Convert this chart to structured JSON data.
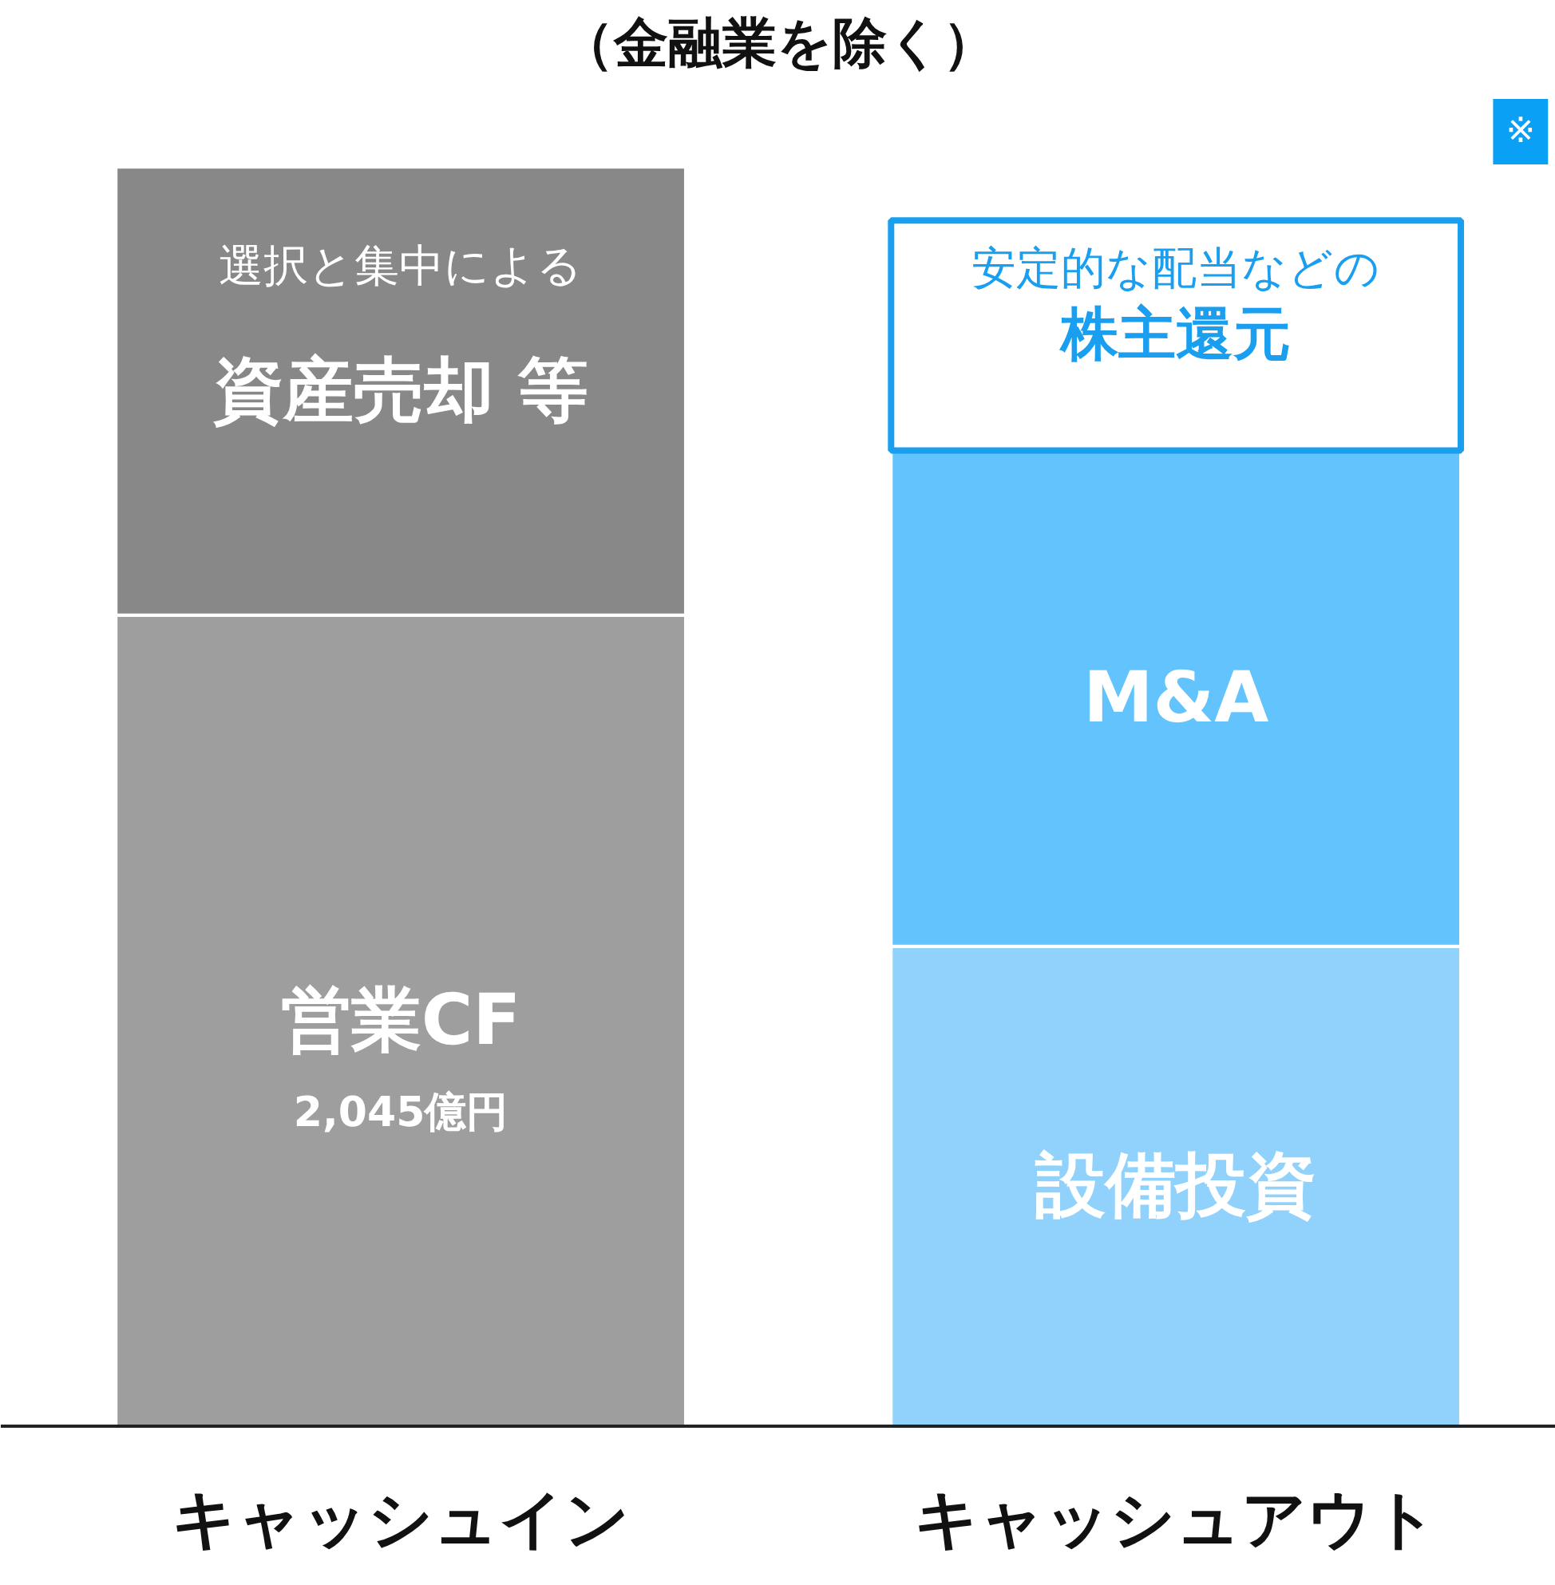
{
  "chart_data": {
    "type": "bar",
    "title": "（金融業を除く）",
    "categories": [
      "キャッシュイン",
      "キャッシュアウト"
    ],
    "stacked": true,
    "tick_labels": "x",
    "series": [
      {
        "name": "営業CF",
        "color": "#9e9e9e",
        "values": [
          2045,
          null
        ],
        "value_labels": [
          "2,045億円",
          null
        ]
      },
      {
        "name": "設備投資",
        "color": "#90d2fb",
        "values": [
          null,
          1210
        ]
      },
      {
        "name": "資産売却 等",
        "color": "#888888",
        "values": [
          1130,
          null
        ]
      },
      {
        "name": "M&A",
        "color": "#63c3fd",
        "values": [
          null,
          1250
        ]
      },
      {
        "name": "株主還元",
        "color": "#ffffff",
        "values": [
          null,
          580
        ]
      }
    ],
    "annotations": [
      "選択と集中による",
      "安定的な配当などの",
      "※"
    ],
    "grid": false
  }
}
